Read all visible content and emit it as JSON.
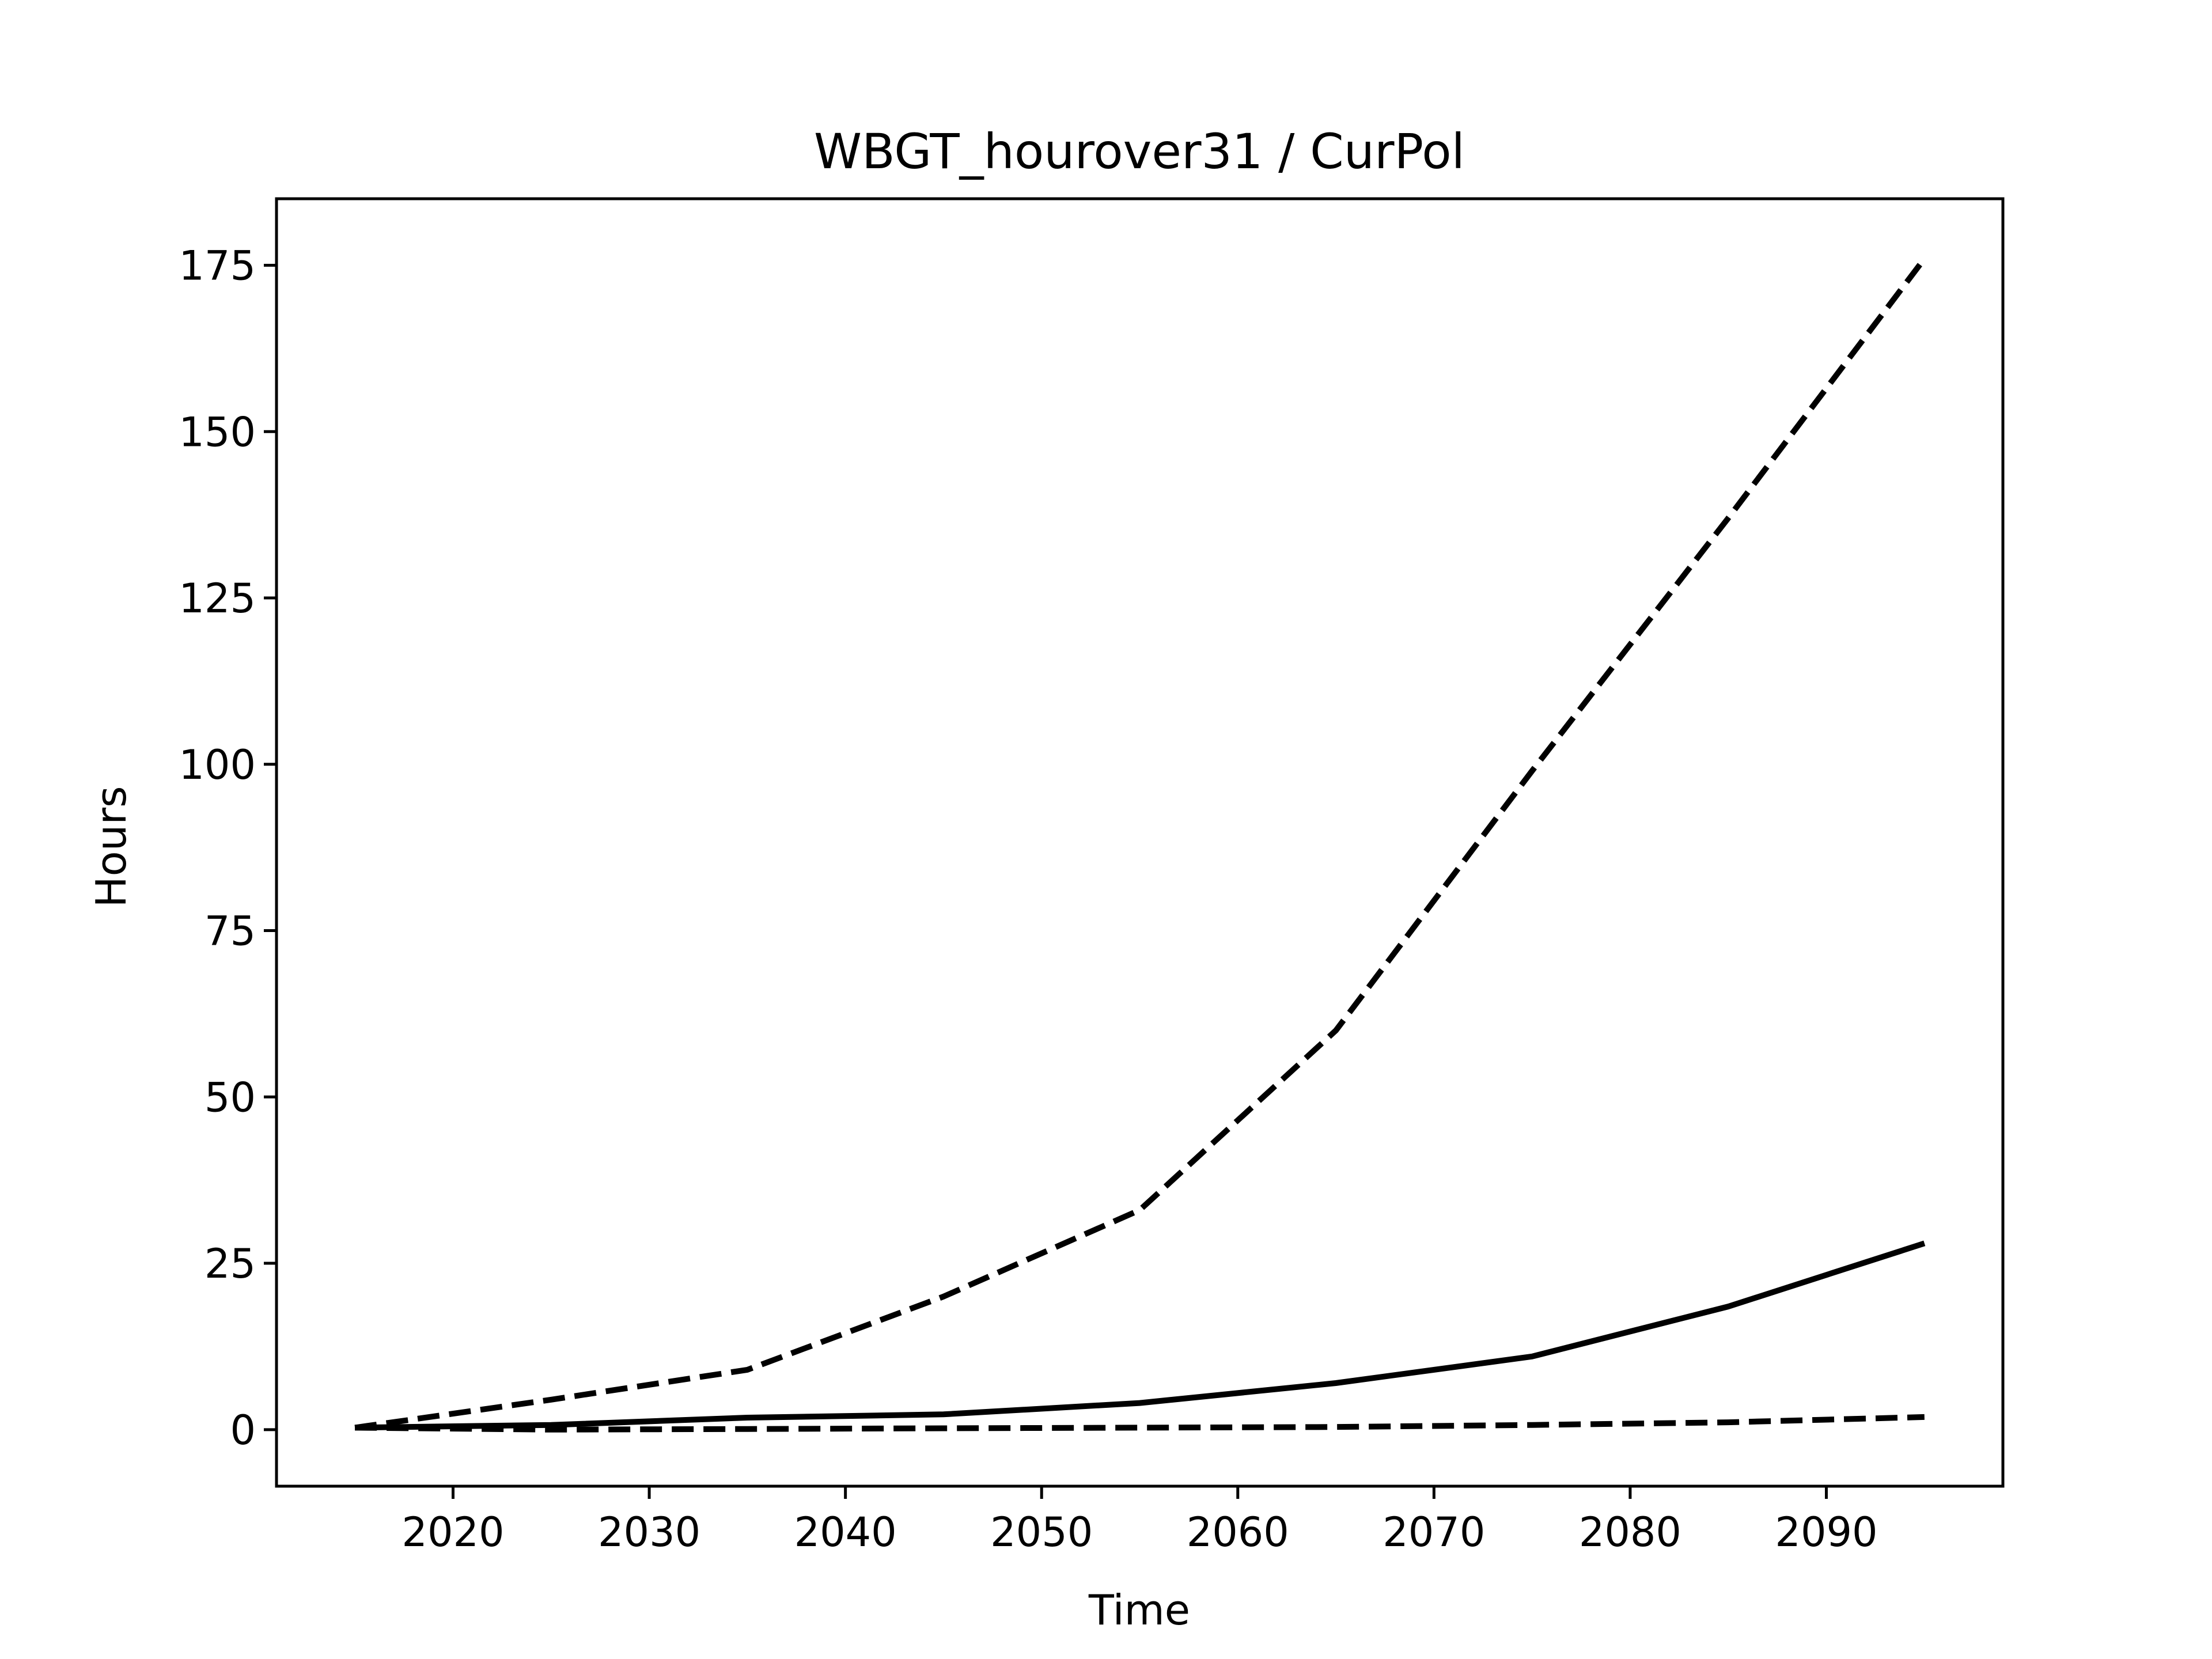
{
  "chart_data": {
    "type": "line",
    "title": "WBGT_hourover31 / CurPol",
    "xlabel": "Time",
    "ylabel": "Hours",
    "xlim": [
      2011,
      2099
    ],
    "ylim": [
      -8.5,
      185
    ],
    "xticks": [
      2020,
      2030,
      2040,
      2050,
      2060,
      2070,
      2080,
      2090
    ],
    "yticks": [
      0,
      25,
      50,
      75,
      100,
      125,
      150,
      175
    ],
    "grid": false,
    "legend": false,
    "x": [
      2015,
      2025,
      2035,
      2045,
      2055,
      2065,
      2075,
      2085,
      2095
    ],
    "series": [
      {
        "style": "dashed",
        "color": "#000000",
        "values": [
          0.3,
          4.5,
          9,
          20,
          33,
          60,
          99,
          137,
          176
        ]
      },
      {
        "style": "solid",
        "color": "#000000",
        "values": [
          0.3,
          0.7,
          1.8,
          2.3,
          4,
          7,
          11,
          18.5,
          28
        ]
      },
      {
        "style": "dashed",
        "color": "#000000",
        "values": [
          0.3,
          0,
          0.1,
          0.2,
          0.3,
          0.4,
          0.7,
          1.1,
          1.9
        ]
      }
    ]
  }
}
